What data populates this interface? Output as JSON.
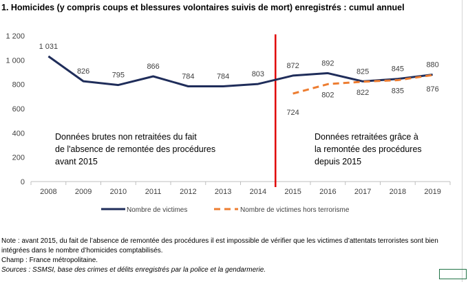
{
  "title": "1. Homicides (y compris coups et blessures volontaires suivis de mort) enregistrés : cumul annuel",
  "chart_data": {
    "type": "line",
    "x": [
      "2008",
      "2009",
      "2010",
      "2011",
      "2012",
      "2013",
      "2014",
      "2015",
      "2016",
      "2017",
      "2018",
      "2019"
    ],
    "ylim": [
      0,
      1200
    ],
    "yticks": [
      0,
      200,
      400,
      600,
      800,
      1000,
      1200
    ],
    "ytick_labels": [
      "0",
      "200",
      "400",
      "600",
      "800",
      "1 000",
      "1 200"
    ],
    "grid": false,
    "legend_position": "bottom",
    "series": [
      {
        "name": "Nombre de victimes",
        "color": "#1f2d5a",
        "style": "solid",
        "values": [
          1031,
          826,
          795,
          866,
          784,
          784,
          803,
          872,
          892,
          825,
          845,
          880
        ],
        "labels": [
          "1 031",
          "826",
          "795",
          "866",
          "784",
          "784",
          "803",
          "872",
          "892",
          "825",
          "845",
          "880"
        ]
      },
      {
        "name": "Nombre de victimes hors terrorisme",
        "color": "#ed7d31",
        "style": "dashed",
        "values": [
          null,
          null,
          null,
          null,
          null,
          null,
          null,
          724,
          802,
          822,
          835,
          876
        ],
        "labels": [
          "",
          "",
          "",
          "",
          "",
          "",
          "",
          "724",
          "802",
          "822",
          "835",
          "876"
        ]
      }
    ],
    "separator": {
      "between": [
        "2014",
        "2015"
      ],
      "color": "#e00000"
    },
    "annotations": [
      "Données brutes non retraitées du fait de l'absence de remontée des procédures avant 2015",
      "Données retraitées grâce à la remontée des procédures depuis 2015"
    ]
  },
  "notes": {
    "note": "Note : avant 2015, du fait de l’absence de remontée des procédures il est impossible de vérifier que les victimes d’attentats terroristes sont bien intégrées dans le nombre d’homicides comptabilisés.",
    "champ": "Champ : France métropolitaine.",
    "sources": "Sources : SSMSI, base des crimes et délits enregistrés par la police et la gendarmerie."
  }
}
